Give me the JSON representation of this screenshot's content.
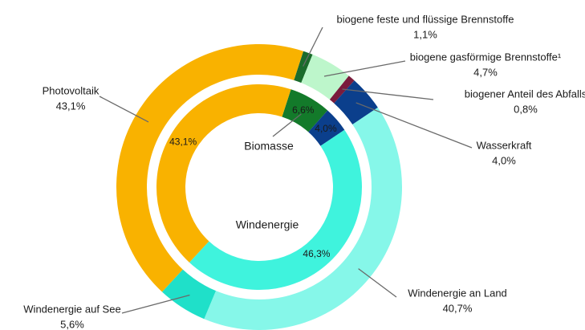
{
  "chart_data": {
    "type": "sunburst",
    "inner": {
      "categories": [
        "Biomasse",
        null,
        "Windenergie",
        null
      ],
      "values": [
        6.6,
        4.0,
        46.3,
        43.1
      ],
      "value_labels": [
        "6,6%",
        "4,0%",
        "46,3%",
        "43,1%"
      ],
      "colors": [
        "#137a2a",
        "#0b3f8c",
        "#3ff3dd",
        "#f9b200"
      ]
    },
    "outer": {
      "categories": [
        "biogene feste und flüssige Brennstoffe",
        "biogene gasförmige Brennstoffe¹",
        "biogener Anteil des Abfalls",
        "Wasserkraft",
        "Windenergie an Land",
        "Windenergie auf See",
        "Photovoltaik"
      ],
      "values": [
        1.1,
        4.7,
        0.8,
        4.0,
        40.7,
        5.6,
        43.1
      ],
      "value_labels": [
        "1,1%",
        "4,7%",
        "0,8%",
        "4,0%",
        "40,7%",
        "5,6%",
        "43,1%"
      ],
      "colors": [
        "#1b6b2c",
        "#bdf6cb",
        "#7a1c3c",
        "#0b3f8c",
        "#86f7e9",
        "#1fe0c9",
        "#f9b200"
      ]
    }
  }
}
